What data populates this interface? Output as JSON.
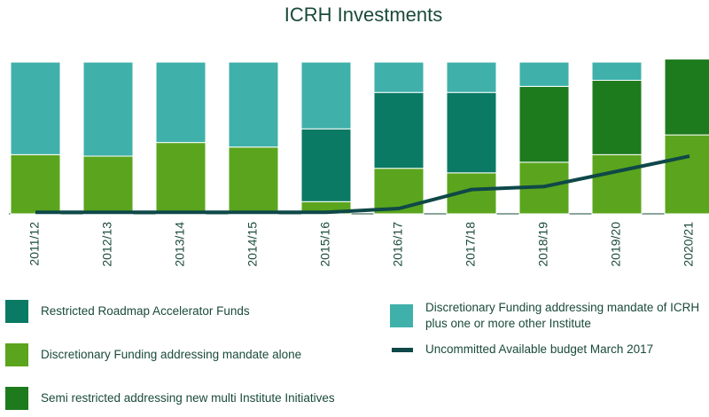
{
  "chart_data": {
    "type": "bar",
    "stacked": true,
    "title": "ICRH Investments",
    "categories": [
      "2011/12",
      "2012/13",
      "2013/14",
      "2014/15",
      "2015/16",
      "2016/17",
      "2017/18",
      "2018/19",
      "2019/20",
      "2020/21"
    ],
    "ylim": [
      0,
      100
    ],
    "series": [
      {
        "name": "Discretionary Funding addressing mandate alone",
        "color": "#5aa51d",
        "values": [
          39,
          38,
          47,
          44,
          8,
          30,
          27,
          34,
          39,
          52
        ]
      },
      {
        "name": "Restricted Roadmap Accelerator Funds",
        "color": "#0b7a64",
        "values": [
          0,
          0,
          0,
          0,
          48,
          50,
          53,
          0,
          0,
          0
        ]
      },
      {
        "name": "Semi restricted addressing new multi Institute Initiatives",
        "color": "#1d7b1d",
        "values": [
          0,
          0,
          0,
          0,
          0,
          0,
          0,
          50,
          49,
          50
        ]
      },
      {
        "name": "Discretionary Funding addressing mandate of ICRH plus one or more other Institute",
        "color": "#40b0aa",
        "values": [
          61,
          62,
          53,
          56,
          44,
          20,
          20,
          16,
          12,
          0
        ]
      },
      {
        "name": "Uncommitted Available budget March 2017",
        "type": "line",
        "color": "#0f4848",
        "values": [
          1,
          1,
          1,
          1,
          1,
          3.5,
          16,
          18,
          28,
          38
        ]
      }
    ]
  }
}
